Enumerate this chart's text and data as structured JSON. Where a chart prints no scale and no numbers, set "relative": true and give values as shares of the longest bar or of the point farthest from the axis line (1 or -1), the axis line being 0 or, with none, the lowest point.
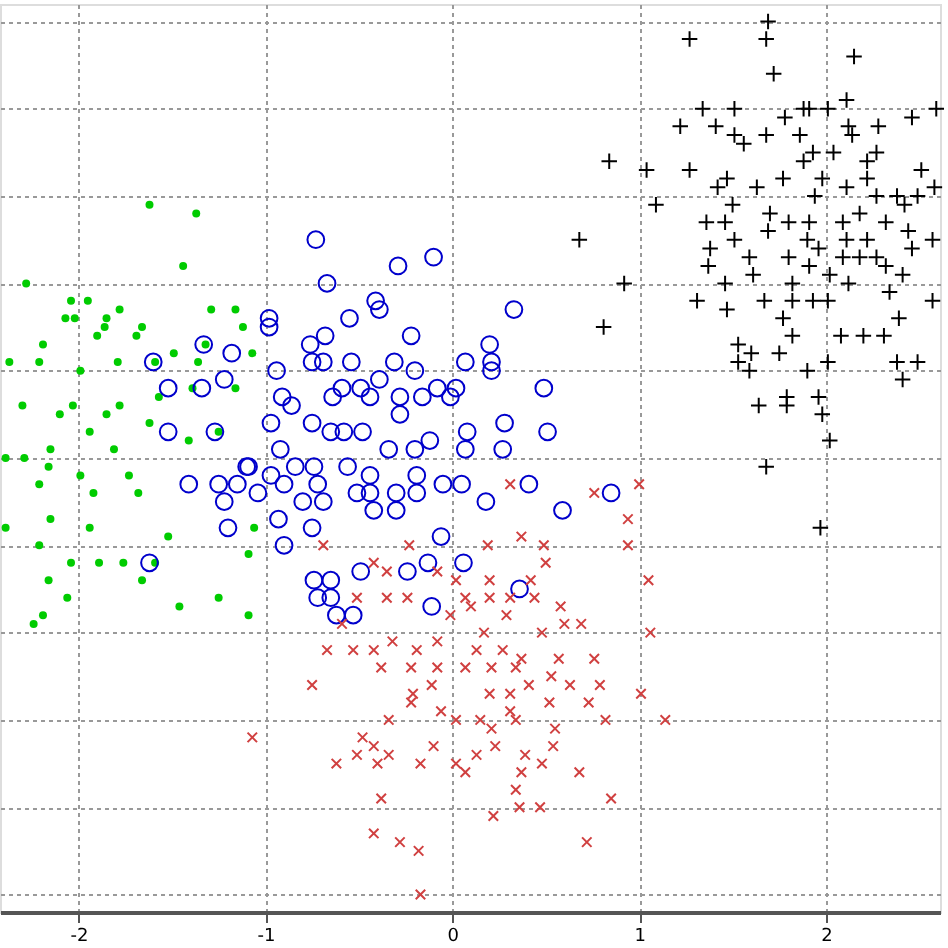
{
  "chart_data": {
    "type": "scatter",
    "relative": true,
    "xlim": [
      -2.42,
      2.61
    ],
    "xticks": [
      -2,
      -1,
      0,
      1,
      2
    ],
    "grid": true,
    "tick_labels": "x",
    "series": [
      {
        "color": "#00cc00",
        "marker": "circle",
        "x": [
          -1.62,
          -1.37,
          -1.44,
          -2.28,
          -2.04,
          -1.95,
          -1.78,
          -2.02,
          -1.85,
          -1.29,
          -1.16,
          -2.07,
          -1.86,
          -1.66,
          -2.19,
          -1.69,
          -1.9,
          -1.49,
          -1.32,
          -1.07,
          -2.21,
          -1.79,
          -1.59,
          -1.36,
          -1.99,
          -2.37,
          -2.3,
          -2.03,
          -1.78,
          -1.57,
          -1.39,
          -1.16,
          -2.1,
          -1.85,
          -1.62,
          -1.25,
          -1.94,
          -2.29,
          -2.15,
          -1.81,
          -1.41,
          -2.39,
          -2.16,
          -1.73,
          -1.99,
          -2.21,
          -1.92,
          -1.68,
          -2.39,
          -2.15,
          -1.94,
          -2.04,
          -1.76,
          -1.59,
          -2.21,
          -2.16,
          -1.89,
          -1.52,
          -1.66,
          -1.06,
          -2.19,
          -2.06,
          -1.46,
          -1.25,
          -1.09,
          -2.24,
          -1.09,
          -1.12
        ],
        "values": [
          0.79,
          0.78,
          0.72,
          0.7,
          0.68,
          0.68,
          0.67,
          0.66,
          0.66,
          0.67,
          0.67,
          0.66,
          0.65,
          0.65,
          0.63,
          0.64,
          0.64,
          0.62,
          0.63,
          0.62,
          0.61,
          0.61,
          0.61,
          0.61,
          0.6,
          0.61,
          0.56,
          0.56,
          0.56,
          0.57,
          0.58,
          0.58,
          0.55,
          0.55,
          0.54,
          0.53,
          0.53,
          0.5,
          0.51,
          0.51,
          0.52,
          0.5,
          0.49,
          0.48,
          0.48,
          0.47,
          0.46,
          0.46,
          0.42,
          0.43,
          0.42,
          0.38,
          0.38,
          0.38,
          0.4,
          0.36,
          0.38,
          0.41,
          0.36,
          0.42,
          0.32,
          0.34,
          0.33,
          0.34,
          0.32,
          0.31,
          0.39,
          0.65
        ]
      },
      {
        "color": "#0000cc",
        "marker": "circle",
        "x": [
          -0.73,
          -0.29,
          -0.1,
          -0.67,
          -0.41,
          -0.39,
          0.33,
          -0.98,
          -0.98,
          -0.55,
          -0.22,
          -0.68,
          -0.76,
          0.2,
          -0.75,
          -0.69,
          -0.54,
          -0.31,
          0.07,
          0.21,
          0.21,
          -0.94,
          -0.59,
          -0.49,
          -0.39,
          -0.2,
          -0.08,
          0.02,
          0.49,
          -0.28,
          -0.44,
          -0.91,
          -0.64,
          -0.16,
          -0.01,
          -0.28,
          -0.86,
          -0.75,
          -0.65,
          -0.97,
          -0.48,
          0.08,
          0.28,
          0.51,
          -0.12,
          -0.34,
          -0.2,
          -0.92,
          -0.58,
          0.07,
          0.27,
          -1.1,
          -0.74,
          -0.56,
          -0.44,
          -0.19,
          -0.05,
          -0.84,
          -0.97,
          -0.72,
          -0.9,
          -0.44,
          -0.51,
          -0.69,
          -0.8,
          -0.3,
          -0.19,
          0.05,
          0.18,
          0.41,
          0.59,
          0.85,
          -1.04,
          -0.93,
          -0.75,
          -0.42,
          -0.3,
          -0.06,
          -0.9,
          -0.49,
          -0.13,
          0.06,
          -0.74,
          -0.65,
          -1.33,
          -1.6,
          -1.18,
          -1.52,
          -1.34,
          -1.22,
          -1.52,
          -1.27,
          -1.41,
          -1.25,
          -1.15,
          -1.09,
          -1.22,
          -1.2,
          -1.62,
          -0.72,
          -0.65,
          -0.62,
          -0.53,
          -0.24,
          -0.11,
          0.36
        ],
        "values": [
          0.75,
          0.72,
          0.73,
          0.7,
          0.68,
          0.67,
          0.67,
          0.66,
          0.65,
          0.66,
          0.64,
          0.64,
          0.63,
          0.63,
          0.61,
          0.61,
          0.61,
          0.61,
          0.61,
          0.61,
          0.6,
          0.6,
          0.58,
          0.58,
          0.59,
          0.6,
          0.58,
          0.58,
          0.58,
          0.57,
          0.57,
          0.57,
          0.57,
          0.57,
          0.57,
          0.55,
          0.56,
          0.54,
          0.53,
          0.54,
          0.53,
          0.53,
          0.54,
          0.53,
          0.52,
          0.51,
          0.51,
          0.51,
          0.53,
          0.51,
          0.51,
          0.49,
          0.49,
          0.49,
          0.48,
          0.48,
          0.47,
          0.49,
          0.48,
          0.47,
          0.47,
          0.46,
          0.46,
          0.45,
          0.45,
          0.46,
          0.46,
          0.47,
          0.45,
          0.47,
          0.44,
          0.46,
          0.46,
          0.43,
          0.42,
          0.44,
          0.44,
          0.41,
          0.4,
          0.37,
          0.38,
          0.38,
          0.36,
          0.36,
          0.63,
          0.61,
          0.62,
          0.58,
          0.58,
          0.59,
          0.53,
          0.53,
          0.47,
          0.47,
          0.47,
          0.49,
          0.45,
          0.42,
          0.38,
          0.34,
          0.34,
          0.32,
          0.32,
          0.37,
          0.33,
          0.35
        ]
      },
      {
        "color": "#d04040",
        "marker": "cross",
        "x": [
          0.31,
          0.76,
          0.94,
          1.0,
          -0.69,
          -0.23,
          0.19,
          0.37,
          0.49,
          0.5,
          0.94,
          1.05,
          -0.42,
          -0.35,
          -0.08,
          0.02,
          0.2,
          0.42,
          -0.51,
          -0.35,
          -0.24,
          0.07,
          0.2,
          0.31,
          0.44,
          -0.59,
          -0.01,
          0.1,
          0.29,
          0.58,
          0.17,
          0.48,
          0.6,
          0.69,
          1.06,
          -0.67,
          -0.53,
          -0.42,
          -0.32,
          -0.19,
          -0.08,
          0.13,
          0.27,
          0.37,
          0.57,
          0.76,
          -0.75,
          -0.38,
          -0.22,
          -0.08,
          0.07,
          0.21,
          0.34,
          0.53,
          0.63,
          0.79,
          -0.21,
          -0.11,
          0.2,
          0.31,
          0.41,
          -0.22,
          -0.06,
          0.15,
          0.31,
          0.52,
          0.73,
          0.82,
          -0.34,
          0.02,
          0.21,
          0.34,
          0.55,
          1.01,
          1.14,
          -1.07,
          -0.48,
          -0.42,
          -0.51,
          -0.62,
          -0.4,
          -0.34,
          -0.17,
          -0.1,
          0.02,
          0.07,
          0.13,
          0.23,
          0.39,
          0.48,
          0.54,
          0.68,
          0.37,
          0.34,
          0.36,
          -0.38,
          0.85,
          0.22,
          0.47,
          -0.42,
          -0.28,
          -0.18,
          0.72,
          -0.17
        ],
        "values": [
          0.47,
          0.46,
          0.43,
          0.47,
          0.4,
          0.4,
          0.4,
          0.41,
          0.4,
          0.38,
          0.4,
          0.36,
          0.38,
          0.37,
          0.37,
          0.36,
          0.36,
          0.36,
          0.34,
          0.34,
          0.34,
          0.34,
          0.34,
          0.34,
          0.34,
          0.31,
          0.32,
          0.33,
          0.32,
          0.33,
          0.3,
          0.3,
          0.31,
          0.31,
          0.3,
          0.28,
          0.28,
          0.28,
          0.29,
          0.28,
          0.29,
          0.28,
          0.28,
          0.27,
          0.27,
          0.27,
          0.24,
          0.26,
          0.26,
          0.26,
          0.26,
          0.26,
          0.26,
          0.25,
          0.24,
          0.24,
          0.23,
          0.24,
          0.23,
          0.23,
          0.24,
          0.22,
          0.21,
          0.2,
          0.21,
          0.22,
          0.22,
          0.2,
          0.2,
          0.2,
          0.19,
          0.2,
          0.19,
          0.23,
          0.2,
          0.18,
          0.18,
          0.17,
          0.16,
          0.15,
          0.15,
          0.16,
          0.15,
          0.17,
          0.15,
          0.14,
          0.16,
          0.17,
          0.16,
          0.15,
          0.17,
          0.14,
          0.14,
          0.12,
          0.1,
          0.11,
          0.11,
          0.09,
          0.1,
          0.07,
          0.06,
          0.05,
          0.06,
          0.0
        ]
      },
      {
        "color": "#000000",
        "marker": "cross",
        "x": [
          1.69,
          1.68,
          1.27,
          2.15,
          1.72,
          1.34,
          1.51,
          1.91,
          2.01,
          2.11,
          1.22,
          1.41,
          1.68,
          1.78,
          1.88,
          2.12,
          2.28,
          2.46,
          2.59,
          1.51,
          1.56,
          1.86,
          2.14,
          0.84,
          1.04,
          1.27,
          1.93,
          2.04,
          2.27,
          2.22,
          2.51,
          2.58,
          1.47,
          1.42,
          1.63,
          1.77,
          1.88,
          1.98,
          2.11,
          2.22,
          1.94,
          2.27,
          2.38,
          2.49,
          1.09,
          1.5,
          1.7,
          1.8,
          1.91,
          2.09,
          2.18,
          2.32,
          2.42,
          1.36,
          1.46,
          2.44,
          2.57,
          0.68,
          1.51,
          1.69,
          1.9,
          2.11,
          2.22,
          1.38,
          1.59,
          1.8,
          1.96,
          2.09,
          2.18,
          2.27,
          2.46,
          1.37,
          1.61,
          1.91,
          2.02,
          2.32,
          2.41,
          0.92,
          1.46,
          1.82,
          2.12,
          1.31,
          1.47,
          1.67,
          1.82,
          1.93,
          2.01,
          2.34,
          2.57,
          1.77,
          2.39,
          0.81,
          1.82,
          2.08,
          2.2,
          2.31,
          1.53,
          1.6,
          1.53,
          1.59,
          1.75,
          2.01,
          1.9,
          2.38,
          2.49,
          2.41,
          1.64,
          1.79,
          1.79,
          1.96,
          1.98,
          2.02,
          1.68,
          1.97
        ],
        "values": [
          1.0,
          0.98,
          0.98,
          0.96,
          0.94,
          0.9,
          0.9,
          0.9,
          0.9,
          0.91,
          0.88,
          0.88,
          0.87,
          0.89,
          0.9,
          0.88,
          0.88,
          0.89,
          0.9,
          0.87,
          0.86,
          0.87,
          0.87,
          0.84,
          0.83,
          0.83,
          0.85,
          0.85,
          0.85,
          0.84,
          0.83,
          0.81,
          0.82,
          0.81,
          0.81,
          0.82,
          0.84,
          0.82,
          0.81,
          0.82,
          0.8,
          0.8,
          0.8,
          0.8,
          0.79,
          0.79,
          0.78,
          0.77,
          0.77,
          0.77,
          0.78,
          0.77,
          0.79,
          0.77,
          0.77,
          0.76,
          0.75,
          0.75,
          0.75,
          0.76,
          0.75,
          0.75,
          0.75,
          0.74,
          0.73,
          0.73,
          0.74,
          0.73,
          0.73,
          0.73,
          0.74,
          0.72,
          0.71,
          0.72,
          0.71,
          0.72,
          0.71,
          0.7,
          0.7,
          0.7,
          0.7,
          0.68,
          0.67,
          0.68,
          0.68,
          0.68,
          0.68,
          0.69,
          0.68,
          0.66,
          0.66,
          0.65,
          0.64,
          0.64,
          0.64,
          0.64,
          0.63,
          0.62,
          0.61,
          0.6,
          0.62,
          0.61,
          0.6,
          0.61,
          0.61,
          0.59,
          0.56,
          0.57,
          0.56,
          0.57,
          0.55,
          0.52,
          0.49,
          0.42
        ]
      }
    ]
  }
}
